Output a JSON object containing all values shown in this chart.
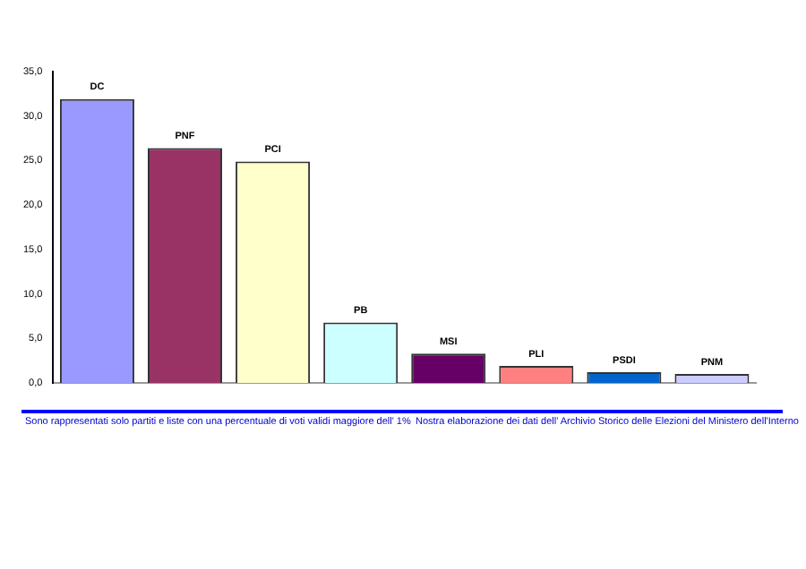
{
  "chart_data": {
    "type": "bar",
    "categories": [
      "DC",
      "PNF",
      "PCI",
      "PB",
      "MSI",
      "PLI",
      "PSDI",
      "PNM"
    ],
    "values": [
      31.9,
      26.4,
      24.9,
      6.8,
      3.3,
      1.9,
      1.2,
      1.0
    ],
    "colors": [
      "#9999ff",
      "#993366",
      "#ffffcc",
      "#ccffff",
      "#660066",
      "#ff8080",
      "#0066cc",
      "#ccccff"
    ],
    "ylim": [
      0,
      35
    ],
    "yticks": [
      {
        "value": 0,
        "label": "0,0"
      },
      {
        "value": 5,
        "label": "5,0"
      },
      {
        "value": 10,
        "label": "10,0"
      },
      {
        "value": 15,
        "label": "15,0"
      },
      {
        "value": 20,
        "label": "20,0"
      },
      {
        "value": 25,
        "label": "25,0"
      },
      {
        "value": 30,
        "label": "30,0"
      },
      {
        "value": 35,
        "label": "35,0"
      }
    ],
    "grid": false,
    "legend": false,
    "tick_labels": "y",
    "annotations": [
      "Sono rappresentati solo partiti e liste con una percentuale di voti validi maggiore dell' 1%",
      "Nostra elaborazione dei dati dell' Archivio Storico delle Elezioni del  Ministero dell'Interno"
    ]
  }
}
